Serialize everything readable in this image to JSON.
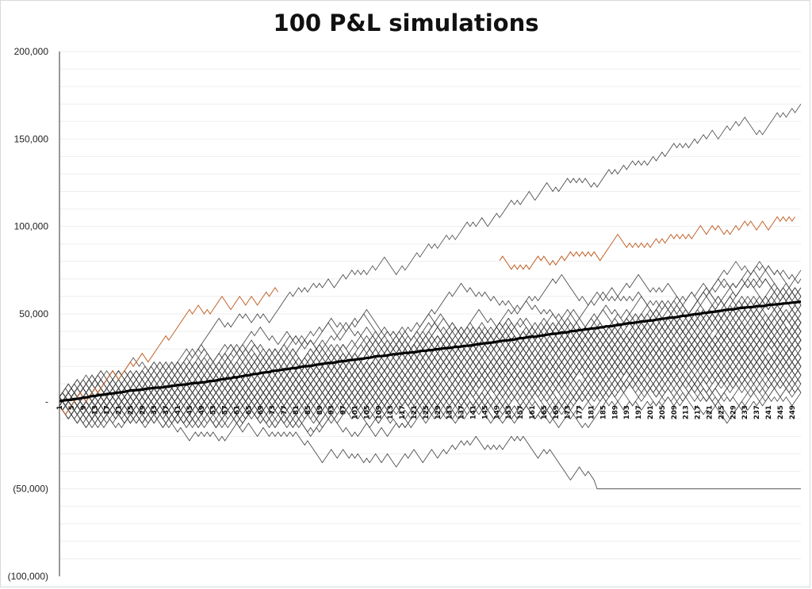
{
  "chart_data": {
    "type": "line",
    "title": "100 P&L simulations",
    "xlabel": "",
    "ylabel": "",
    "ylim": [
      -100000,
      200000
    ],
    "y_ticks": [
      {
        "value": 200000,
        "label": "200,000"
      },
      {
        "value": 150000,
        "label": "150,000"
      },
      {
        "value": 100000,
        "label": "100,000"
      },
      {
        "value": 50000,
        "label": "50,000"
      },
      {
        "value": 0,
        "label": "-"
      },
      {
        "value": -50000,
        "label": "(50,000)"
      },
      {
        "value": -100000,
        "label": "(100,000)"
      }
    ],
    "x_range": [
      1,
      252
    ],
    "x_tick_labels": [
      "1",
      "5",
      "9",
      "13",
      "17",
      "21",
      "25",
      "29",
      "33",
      "37",
      "41",
      "45",
      "49",
      "53",
      "57",
      "61",
      "65",
      "69",
      "73",
      "77",
      "81",
      "85",
      "89",
      "93",
      "97",
      "101",
      "105",
      "109",
      "113",
      "117",
      "121",
      "125",
      "129",
      "133",
      "137",
      "141",
      "145",
      "149",
      "153",
      "157",
      "161",
      "165",
      "169",
      "173",
      "177",
      "181",
      "185",
      "189",
      "193",
      "197",
      "201",
      "205",
      "209",
      "213",
      "217",
      "221",
      "225",
      "229",
      "233",
      "237",
      "241",
      "245",
      "249"
    ],
    "simulation_count": 100,
    "step_size": 2500,
    "simulation_color": "#404040",
    "highlight_color": "#c0622a",
    "mean_color": "#000000",
    "gridlines": "horizontal",
    "legend": "none",
    "highlighted_series": [
      {
        "x": [
          1,
          20,
          40,
          52,
          60,
          75
        ],
        "values": [
          0,
          36000,
          46000,
          60000,
          50000,
          68000
        ]
      },
      {
        "x": [
          150,
          165,
          185,
          205,
          230,
          250
        ],
        "values": [
          78000,
          82000,
          86000,
          92000,
          100000,
          105000
        ]
      }
    ],
    "extreme_series": [
      {
        "name": "",
        "x": [
          1,
          40,
          80,
          120,
          160,
          200,
          230,
          252
        ],
        "values": [
          0,
          30000,
          62000,
          82000,
          118000,
          138000,
          158000,
          168000
        ]
      },
      {
        "name": "",
        "x": [
          1,
          40,
          80,
          120,
          150,
          175,
          183,
          252
        ],
        "values": [
          0,
          -15000,
          -30000,
          -30000,
          -25000,
          -40000,
          -50000,
          -50000
        ]
      }
    ],
    "mean_series": {
      "x": [
        1,
        20,
        50,
        80,
        110,
        140,
        170,
        200,
        230,
        252
      ],
      "values": [
        0,
        5000,
        11000,
        19000,
        26000,
        32000,
        39000,
        46000,
        53000,
        57000
      ]
    }
  }
}
